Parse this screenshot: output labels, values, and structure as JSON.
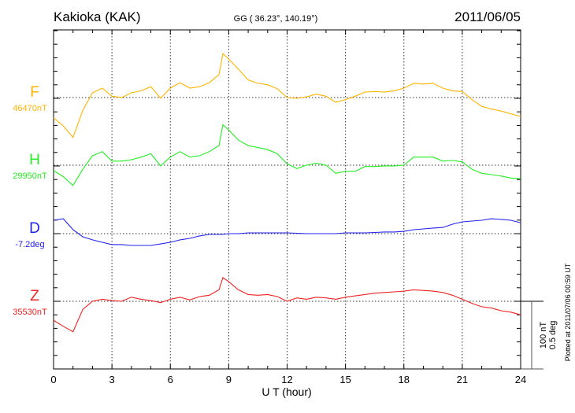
{
  "header": {
    "station": "Kakioka (KAK)",
    "coords": "GG ( 36.23°, 140.19°)",
    "date": "2011/06/05"
  },
  "footer": {
    "plotted": "Plotted at 2011/07/06 00:59 UT"
  },
  "scale": {
    "nT": "100 nT",
    "deg": "0.5 deg"
  },
  "chart_data": {
    "type": "line",
    "title": "Kakioka (KAK) 2011/06/05",
    "xlabel": "U T (hour)",
    "xlim": [
      0,
      24
    ],
    "xticks": [
      "0",
      "3",
      "6",
      "9",
      "12",
      "15",
      "18",
      "21",
      "24"
    ],
    "x": [
      0,
      0.5,
      1,
      1.5,
      2,
      2.5,
      3,
      3.5,
      4,
      4.5,
      5,
      5.5,
      6,
      6.5,
      7,
      7.5,
      8,
      8.5,
      8.7,
      9,
      9.5,
      10,
      10.5,
      11,
      11.5,
      12,
      12.5,
      13,
      13.5,
      14,
      14.5,
      15,
      15.5,
      16,
      16.5,
      17,
      17.5,
      18,
      18.5,
      19,
      19.5,
      20,
      20.5,
      21,
      21.5,
      22,
      22.5,
      23,
      23.5,
      24
    ],
    "scale_per_division": {
      "nT": 100,
      "deg": 0.5
    },
    "series": [
      {
        "name": "F",
        "baseline_label": "46470nT",
        "unit": "nT",
        "color": "#ffb400",
        "values": [
          -30,
          -42,
          -59,
          -19,
          7,
          14,
          2,
          0,
          7,
          10,
          16,
          -1,
          14,
          22,
          14,
          16,
          22,
          34,
          65,
          57,
          42,
          26,
          21,
          19,
          13,
          0,
          -1,
          1,
          5,
          2,
          -7,
          -3,
          2,
          8,
          9,
          8,
          10,
          14,
          21,
          20,
          21,
          14,
          10,
          9,
          -3,
          -13,
          -17,
          -20,
          -24,
          -28
        ]
      },
      {
        "name": "H",
        "baseline_label": "29950nT",
        "unit": "nT",
        "color": "#22ee22",
        "values": [
          -8,
          -17,
          -30,
          -6,
          14,
          20,
          6,
          6,
          8,
          12,
          17,
          -1,
          12,
          20,
          12,
          14,
          20,
          29,
          60,
          52,
          37,
          29,
          26,
          23,
          17,
          2,
          -5,
          0,
          3,
          0,
          -12,
          -9,
          -9,
          -2,
          -2,
          -1,
          -1,
          0,
          12,
          12,
          12,
          6,
          7,
          5,
          -6,
          -12,
          -14,
          -16,
          -19,
          -20
        ]
      },
      {
        "name": "D",
        "baseline_label": "-7.2deg",
        "unit": "deg",
        "color": "#2222ee",
        "values": [
          0.099,
          0.11,
          0.029,
          -0.023,
          -0.046,
          -0.064,
          -0.081,
          -0.081,
          -0.087,
          -0.087,
          -0.087,
          -0.076,
          -0.064,
          -0.046,
          -0.035,
          -0.017,
          -0.006,
          -0.006,
          -0.006,
          0,
          0,
          0.006,
          0.006,
          0.006,
          0.006,
          0.006,
          0.003,
          0,
          0,
          0,
          0,
          0.006,
          0.006,
          0.006,
          0.009,
          0.012,
          0.012,
          0.017,
          0.029,
          0.035,
          0.041,
          0.046,
          0.07,
          0.087,
          0.093,
          0.099,
          0.11,
          0.105,
          0.099,
          0.081
        ]
      },
      {
        "name": "Z",
        "baseline_label": "35530nT",
        "unit": "nT",
        "color": "#ee2222",
        "values": [
          -28,
          -37,
          -45,
          -12,
          0,
          3,
          1,
          0,
          6,
          3,
          1,
          -2,
          3,
          6,
          2,
          7,
          9,
          17,
          35,
          29,
          17,
          10,
          9,
          10,
          7,
          0,
          5,
          3,
          6,
          5,
          3,
          6,
          8,
          10,
          12,
          13,
          14,
          15,
          17,
          16,
          15,
          13,
          9,
          3,
          -3,
          -8,
          -10,
          -14,
          -16,
          -20
        ]
      }
    ]
  }
}
